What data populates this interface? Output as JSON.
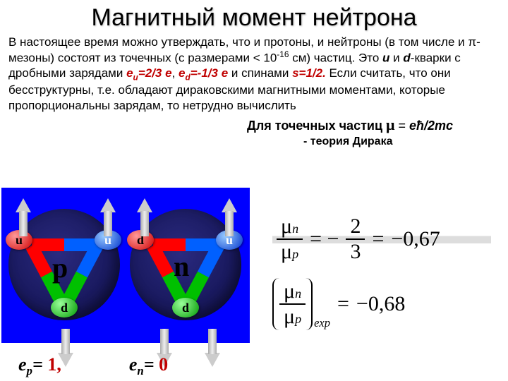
{
  "title": "Магнитный момент нейтрона",
  "intro_html": "В настоящее время можно утверждать, что и протоны, и нейтроны (в том числе и π-мезоны) состоят из точечных (с размерами &lt; 10<sup>-16</sup> см) частиц. Это <span class='bi'>u</span> и <span class='bi'>d</span>-кварки  с дробными зарядами <span class='red'>e<sub>u</sub>=2/3 e</span>, <span class='red'>e<sub>d</sub>=-1/3 e</span> и спинами <span class='red'>s=1/2.</span> Если считать, что они бесструктурны, т.е. обладают дираковскими магнитными моментами, которые пропорциональны зарядам, то нетрудно вычислить",
  "dirac_prefix": "Для точечных частиц ",
  "dirac_formula_html": "<span class='mu'>μ</span> = <span class='f'>eħ/2mc</span>",
  "dirac_theory": "- теория Дирака",
  "proton": {
    "label": "p",
    "quarks": [
      {
        "label": "u",
        "pos": "q-ul",
        "color": "q-red",
        "arrow": "up",
        "arrowPos": "ap1"
      },
      {
        "label": "u",
        "pos": "q-ur",
        "color": "q-blue",
        "arrow": "up",
        "arrowPos": "ap2"
      },
      {
        "label": "d",
        "pos": "q-db",
        "color": "q-green",
        "arrow": "down",
        "arrowPos": "ap3"
      }
    ]
  },
  "neutron": {
    "label": "n",
    "quarks": [
      {
        "label": "u",
        "pos": "q-ur",
        "color": "q-blue",
        "arrow": "up",
        "arrowPos": "an2"
      },
      {
        "label": "d",
        "pos": "q-ul",
        "color": "q-red",
        "arrow": "down",
        "arrowPos": "an3"
      },
      {
        "label": "d",
        "pos": "q-db",
        "color": "q-green",
        "arrow": "down",
        "arrowPos": "an4"
      }
    ],
    "extra_up_arrow": "an1"
  },
  "ratio_theory": {
    "lhs_num": "μ<span class='sub'>n</span>",
    "lhs_den": "μ<span class='sub'>p</span>",
    "rhs_num": "2",
    "rhs_den": "3",
    "value": "−0,67"
  },
  "ratio_exp": {
    "lhs_num": "μ<span class='sub'>n</span>",
    "lhs_den": "μ<span class='sub'>p</span>",
    "sub": "exp",
    "value": "−0,68"
  },
  "charges": {
    "ep_label": "e<sub>p</sub>= ",
    "ep_val": "1,",
    "en_label": "e<sub>n</sub>= ",
    "en_val": "0"
  }
}
